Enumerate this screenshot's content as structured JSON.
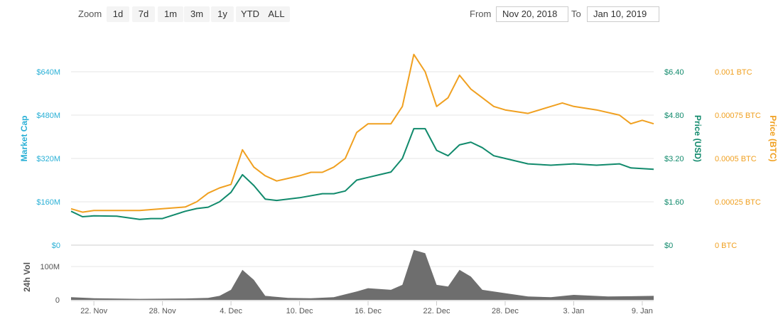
{
  "toolbar": {
    "zoom_label": "Zoom",
    "zoom_buttons": [
      "1d",
      "7d",
      "1m",
      "3m",
      "1y",
      "YTD",
      "ALL"
    ],
    "from_label": "From",
    "from_value": "Nov 20, 2018",
    "to_label": "To",
    "to_value": "Jan 10, 2019"
  },
  "chart_data": {
    "type": "line",
    "x_range": [
      "2018-11-20",
      "2019-01-10"
    ],
    "x_tick_labels": [
      "22. Nov",
      "28. Nov",
      "4. Dec",
      "10. Dec",
      "16. Dec",
      "22. Dec",
      "28. Dec",
      "3. Jan",
      "9. Jan"
    ],
    "x_tick_dates": [
      "2018-11-22",
      "2018-11-28",
      "2018-12-04",
      "2018-12-10",
      "2018-12-16",
      "2018-12-22",
      "2018-12-28",
      "2019-01-03",
      "2019-01-09"
    ],
    "axes": {
      "market_cap": {
        "label": "Market Cap",
        "tick_labels": [
          "$0",
          "$160M",
          "$320M",
          "$480M",
          "$640M"
        ],
        "ticks": [
          0,
          160000000,
          320000000,
          480000000,
          640000000
        ],
        "range": [
          0,
          800000000
        ],
        "color": "#2ab0d6"
      },
      "price_usd": {
        "label": "Price (USD)",
        "tick_labels": [
          "$0",
          "$1.60",
          "$3.20",
          "$4.80",
          "$6.40"
        ],
        "ticks": [
          0,
          1.6,
          3.2,
          4.8,
          6.4
        ],
        "range": [
          0,
          8.0
        ],
        "color": "#118a6c"
      },
      "price_btc": {
        "label": "Price (BTC)",
        "tick_labels": [
          "0 BTC",
          "0.00025 BTC",
          "0.0005 BTC",
          "0.00075 BTC",
          "0.001 BTC"
        ],
        "ticks": [
          0,
          0.00025,
          0.0005,
          0.00075,
          0.001
        ],
        "range": [
          0,
          0.00125
        ],
        "color": "#f0a020"
      },
      "volume": {
        "label": "24h Vol",
        "tick_labels": [
          "0",
          "100M"
        ],
        "ticks": [
          0,
          100000000
        ],
        "range": [
          0,
          160000000
        ],
        "color": "#555555"
      }
    },
    "series": [
      {
        "name": "Price (USD)",
        "axis": "price_usd",
        "color": "#118a6c",
        "x": [
          "2018-11-20",
          "2018-11-21",
          "2018-11-22",
          "2018-11-24",
          "2018-11-26",
          "2018-11-27",
          "2018-11-28",
          "2018-11-30",
          "2018-12-01",
          "2018-12-02",
          "2018-12-03",
          "2018-12-04",
          "2018-12-05",
          "2018-12-06",
          "2018-12-07",
          "2018-12-08",
          "2018-12-10",
          "2018-12-12",
          "2018-12-13",
          "2018-12-14",
          "2018-12-15",
          "2018-12-16",
          "2018-12-17",
          "2018-12-18",
          "2018-12-19",
          "2018-12-20",
          "2018-12-21",
          "2018-12-22",
          "2018-12-23",
          "2018-12-24",
          "2018-12-25",
          "2018-12-26",
          "2018-12-27",
          "2018-12-28",
          "2018-12-30",
          "2019-01-01",
          "2019-01-03",
          "2019-01-05",
          "2019-01-07",
          "2019-01-08",
          "2019-01-10"
        ],
        "values": [
          1.25,
          1.05,
          1.08,
          1.07,
          0.95,
          0.98,
          0.98,
          1.25,
          1.35,
          1.4,
          1.6,
          1.95,
          2.6,
          2.2,
          1.7,
          1.65,
          1.75,
          1.9,
          1.9,
          2.0,
          2.4,
          2.5,
          2.6,
          2.7,
          3.2,
          4.3,
          4.3,
          3.5,
          3.3,
          3.7,
          3.8,
          3.6,
          3.3,
          3.2,
          3.0,
          2.95,
          3.0,
          2.95,
          3.0,
          2.85,
          2.8
        ]
      },
      {
        "name": "Price (BTC)",
        "axis": "price_btc",
        "color": "#f0a020",
        "x": [
          "2018-11-20",
          "2018-11-21",
          "2018-11-22",
          "2018-11-24",
          "2018-11-26",
          "2018-11-28",
          "2018-11-30",
          "2018-12-01",
          "2018-12-02",
          "2018-12-03",
          "2018-12-04",
          "2018-12-05",
          "2018-12-06",
          "2018-12-07",
          "2018-12-08",
          "2018-12-10",
          "2018-12-11",
          "2018-12-12",
          "2018-12-13",
          "2018-12-14",
          "2018-12-15",
          "2018-12-16",
          "2018-12-17",
          "2018-12-18",
          "2018-12-19",
          "2018-12-20",
          "2018-12-21",
          "2018-12-22",
          "2018-12-23",
          "2018-12-24",
          "2018-12-25",
          "2018-12-26",
          "2018-12-27",
          "2018-12-28",
          "2018-12-30",
          "2019-01-01",
          "2019-01-02",
          "2019-01-03",
          "2019-01-05",
          "2019-01-07",
          "2019-01-08",
          "2019-01-09",
          "2019-01-10"
        ],
        "values": [
          0.00021,
          0.00019,
          0.0002,
          0.0002,
          0.0002,
          0.00021,
          0.00022,
          0.00025,
          0.0003,
          0.00033,
          0.00035,
          0.00055,
          0.00045,
          0.0004,
          0.00037,
          0.0004,
          0.00042,
          0.00042,
          0.00045,
          0.0005,
          0.00065,
          0.0007,
          0.0007,
          0.0007,
          0.0008,
          0.0011,
          0.001,
          0.0008,
          0.00085,
          0.00098,
          0.0009,
          0.00085,
          0.0008,
          0.00078,
          0.00076,
          0.0008,
          0.00082,
          0.0008,
          0.00078,
          0.00075,
          0.0007,
          0.00072,
          0.0007
        ]
      },
      {
        "name": "24h Vol",
        "axis": "volume",
        "color": "#6e6e6e",
        "x": [
          "2018-11-20",
          "2018-11-22",
          "2018-11-26",
          "2018-11-30",
          "2018-12-02",
          "2018-12-03",
          "2018-12-04",
          "2018-12-05",
          "2018-12-06",
          "2018-12-07",
          "2018-12-09",
          "2018-12-11",
          "2018-12-13",
          "2018-12-15",
          "2018-12-16",
          "2018-12-18",
          "2018-12-19",
          "2018-12-20",
          "2018-12-21",
          "2018-12-22",
          "2018-12-23",
          "2018-12-24",
          "2018-12-25",
          "2018-12-26",
          "2018-12-28",
          "2018-12-30",
          "2019-01-01",
          "2019-01-03",
          "2019-01-06",
          "2019-01-10"
        ],
        "values": [
          8000000,
          5000000,
          3000000,
          4000000,
          6000000,
          12000000,
          30000000,
          90000000,
          60000000,
          12000000,
          6000000,
          5000000,
          8000000,
          25000000,
          35000000,
          30000000,
          45000000,
          150000000,
          140000000,
          45000000,
          40000000,
          90000000,
          70000000,
          30000000,
          20000000,
          10000000,
          8000000,
          15000000,
          10000000,
          12000000
        ]
      }
    ],
    "grid": true,
    "legend": "none"
  }
}
